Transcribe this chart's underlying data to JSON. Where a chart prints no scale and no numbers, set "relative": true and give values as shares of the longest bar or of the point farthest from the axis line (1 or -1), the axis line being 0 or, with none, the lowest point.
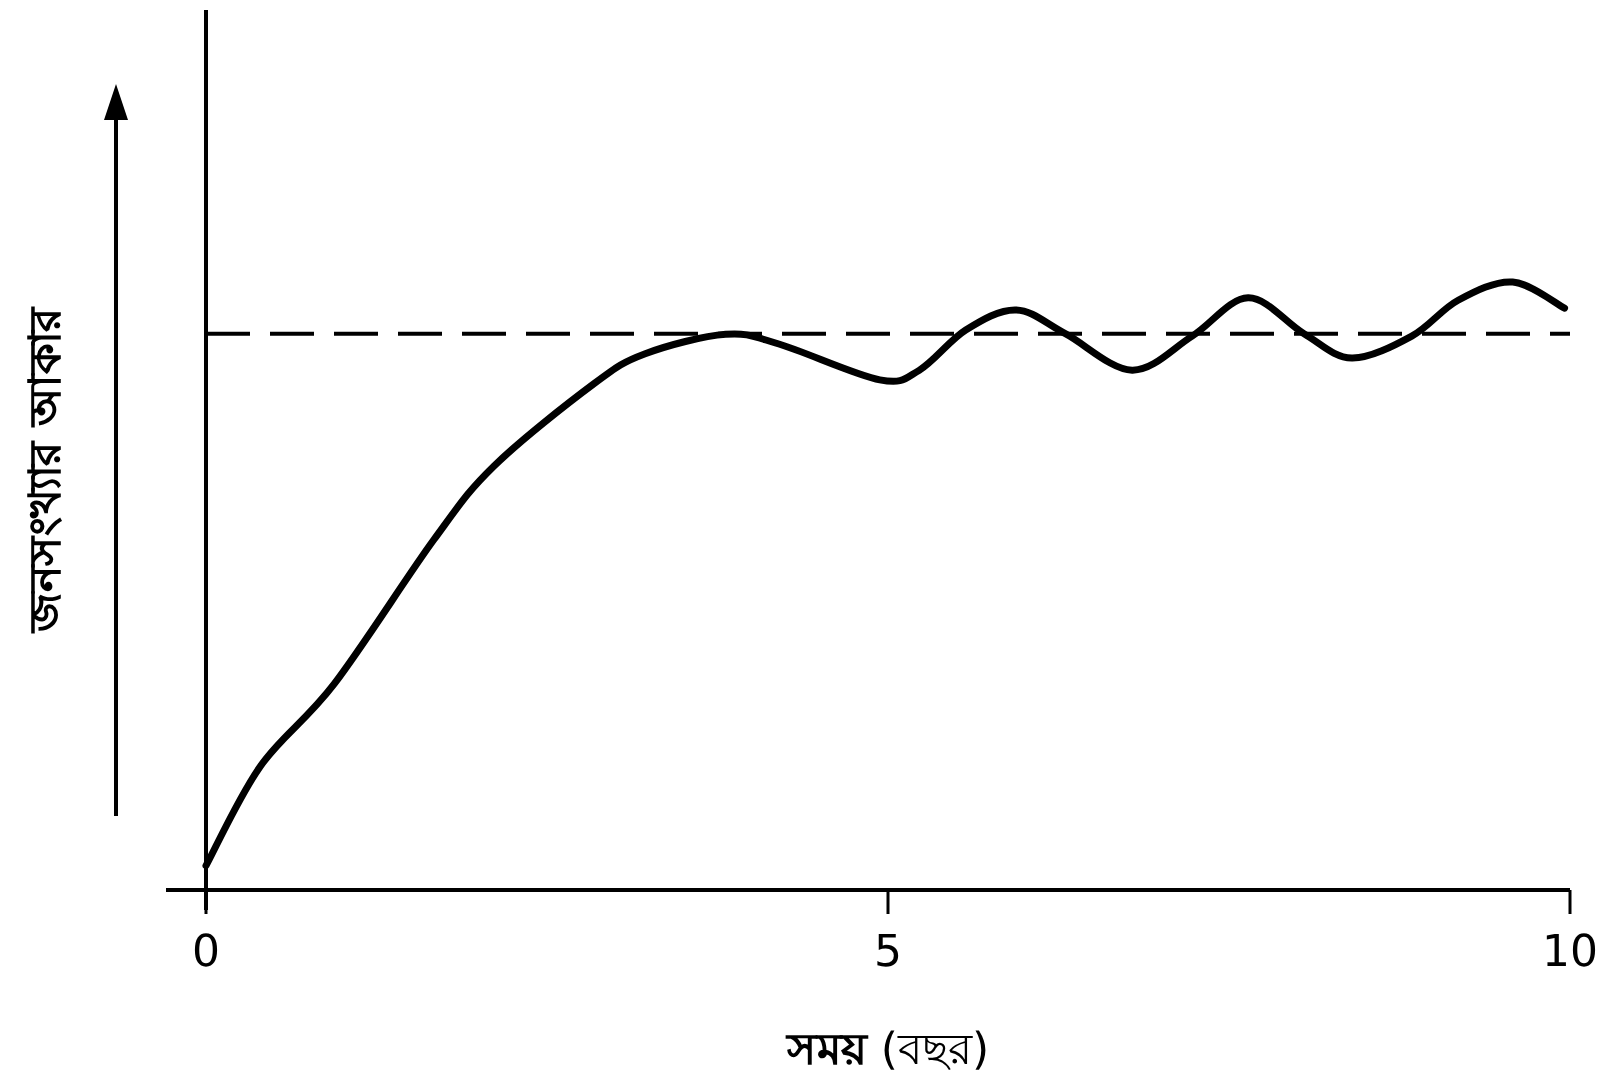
{
  "chart_data": {
    "type": "line",
    "relative": true,
    "xlabel": "**সময়** (বছর)",
    "ylabel": "জনসংখ্যার আকার",
    "xlim": [
      0,
      10
    ],
    "xticks": [
      0,
      5,
      10
    ],
    "line_style": "solid",
    "x": [
      0,
      0.4,
      0.94,
      1.67,
      2.11,
      2.84,
      3.22,
      3.81,
      4.2,
      4.94,
      5.23,
      5.57,
      5.94,
      6.3,
      6.79,
      7.23,
      7.64,
      8.05,
      8.4,
      8.84,
      9.18,
      9.58,
      9.96
    ],
    "series": [
      {
        "color": "#000000",
        "values": [
          0.04,
          0.204,
          0.339,
          0.576,
          0.697,
          0.832,
          0.882,
          0.914,
          0.898,
          0.839,
          0.855,
          0.921,
          0.954,
          0.915,
          0.855,
          0.911,
          0.974,
          0.915,
          0.875,
          0.911,
          0.97,
          1.0,
          0.957
        ]
      }
    ],
    "ref_lines": [
      {
        "axis": "y",
        "value": 0.915,
        "color": "#000000",
        "line_style": "dashed"
      }
    ]
  }
}
